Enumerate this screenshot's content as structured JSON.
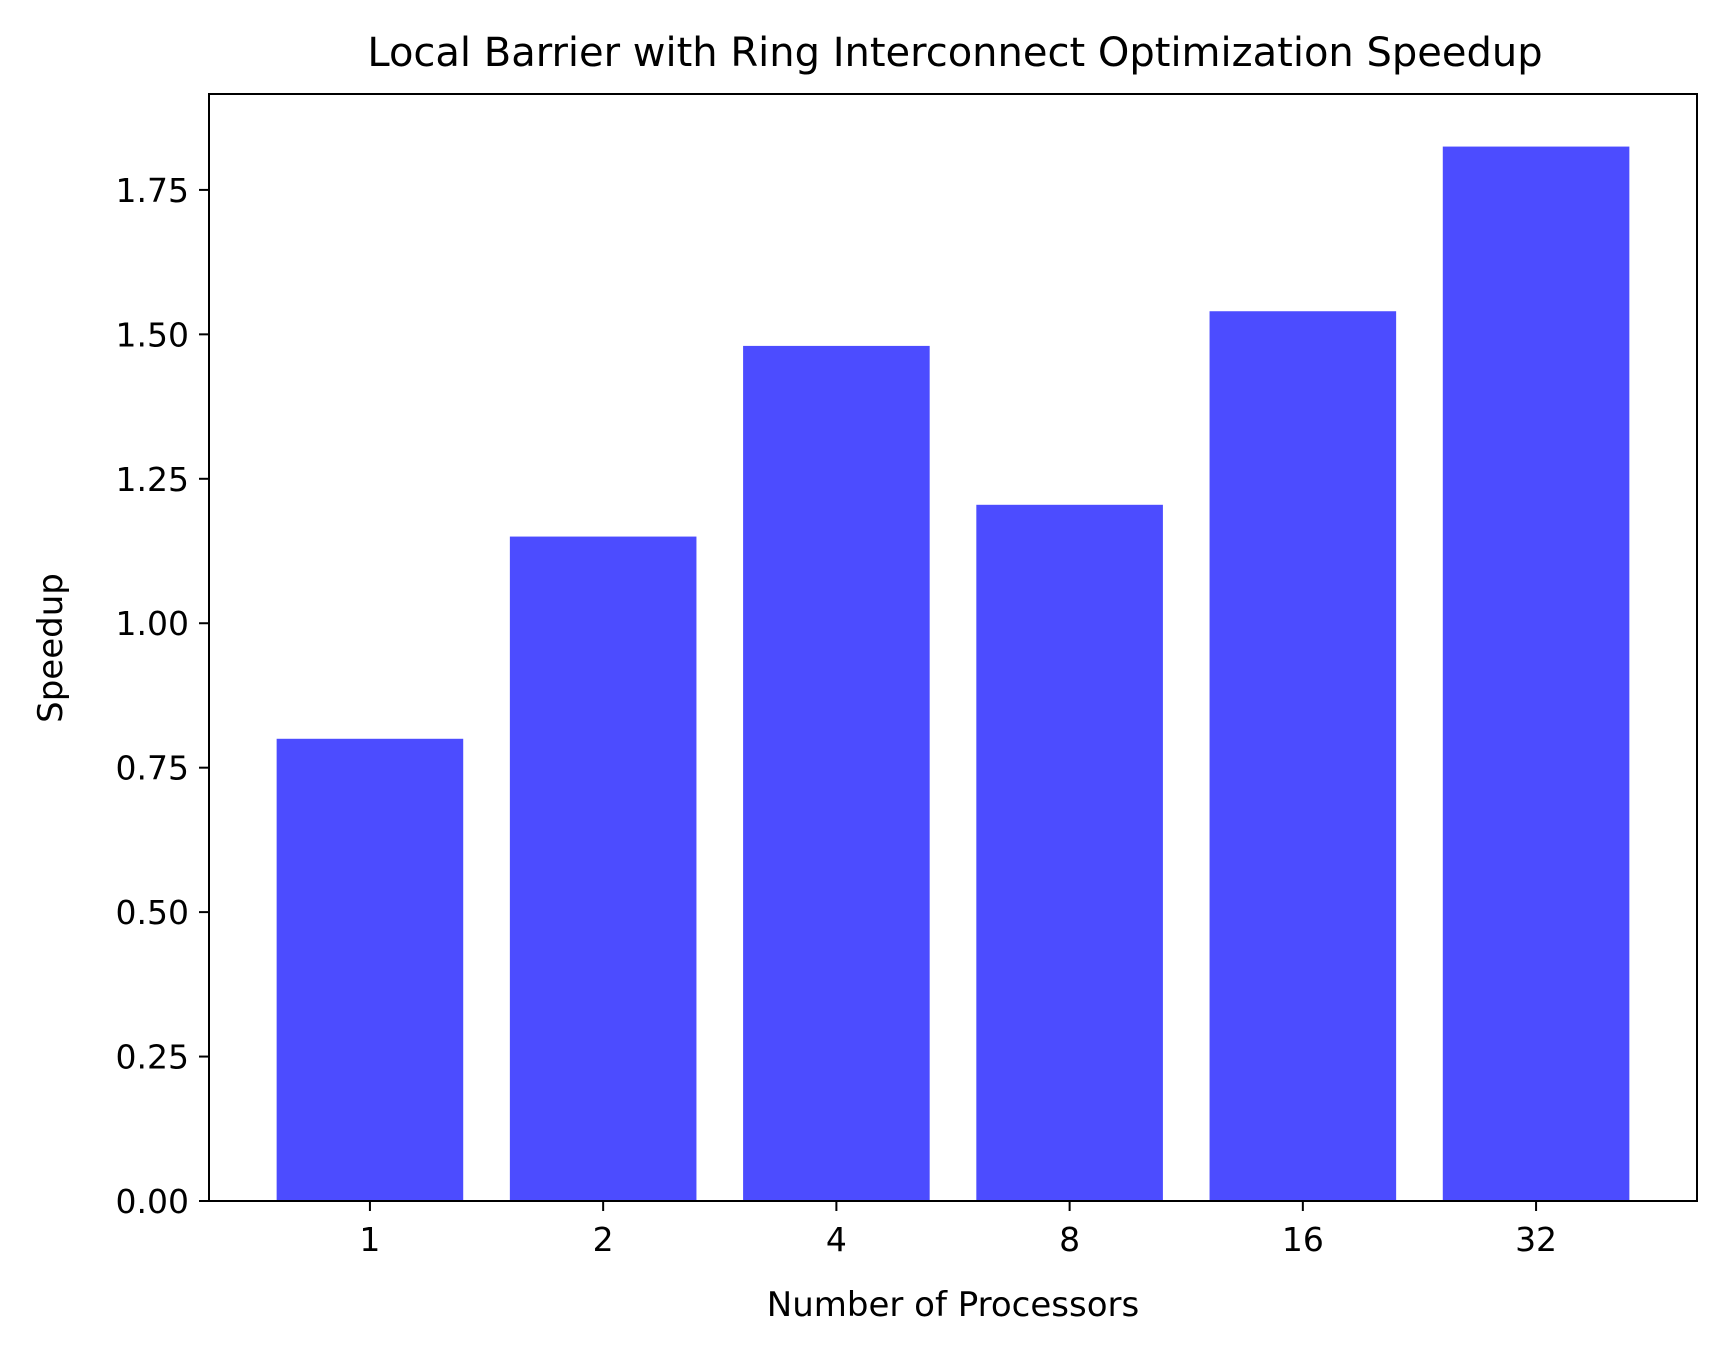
{
  "chart_data": {
    "type": "bar",
    "title": "Local Barrier with Ring Interconnect Optimization Speedup",
    "xlabel": "Number of Processors",
    "ylabel": "Speedup",
    "categories": [
      "1",
      "2",
      "4",
      "8",
      "16",
      "32"
    ],
    "values": [
      0.8,
      1.15,
      1.48,
      1.205,
      1.54,
      1.825
    ],
    "ylim": [
      0,
      1.916
    ],
    "yticks": [
      "0.00",
      "0.25",
      "0.50",
      "0.75",
      "1.00",
      "1.25",
      "1.50",
      "1.75"
    ],
    "bar_color": "#4c4cff",
    "grid": false,
    "legend": false
  }
}
